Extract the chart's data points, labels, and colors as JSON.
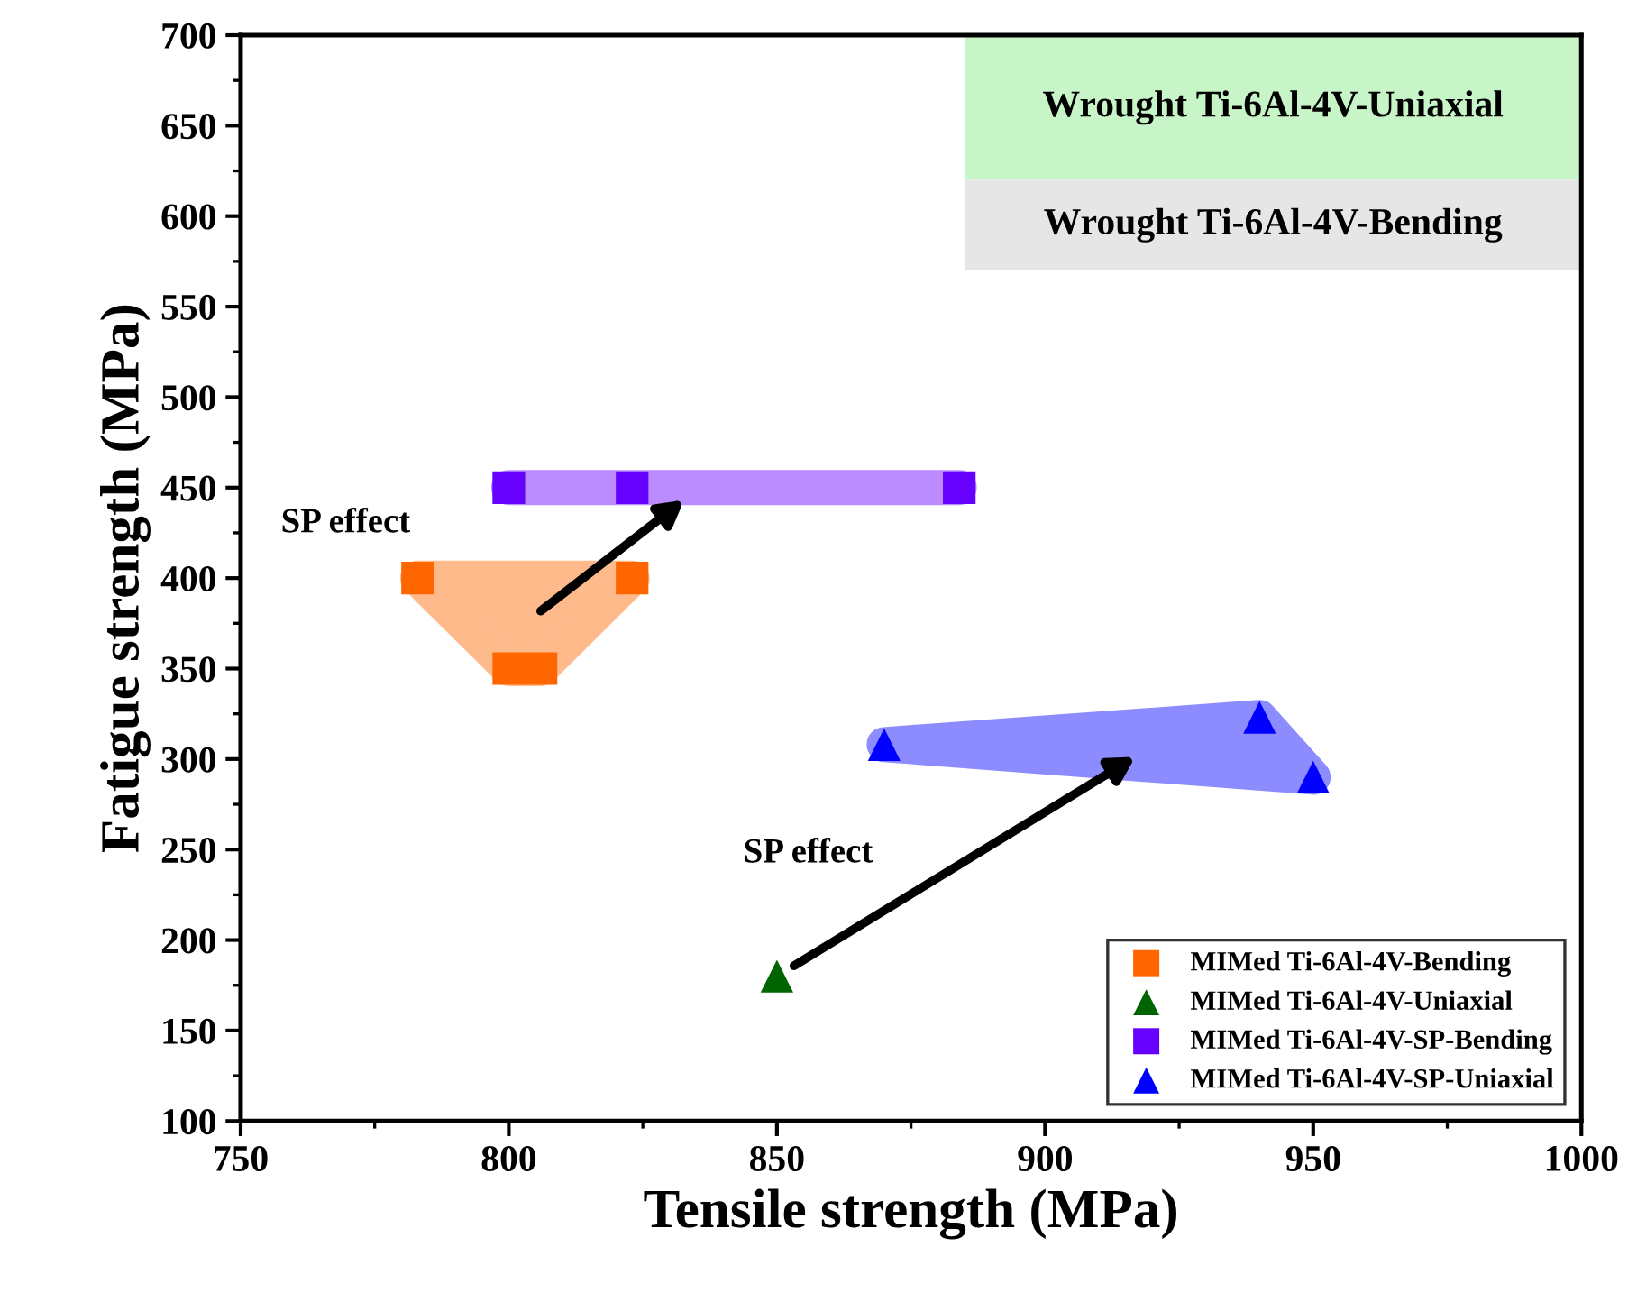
{
  "chart_data": {
    "type": "scatter",
    "xlabel": "Tensile strength (MPa)",
    "ylabel": "Fatigue strength (MPa)",
    "xlim": [
      750,
      1000
    ],
    "xticks": [
      750,
      800,
      850,
      900,
      950,
      1000
    ],
    "ylim": [
      100,
      700
    ],
    "yticks": [
      100,
      150,
      200,
      250,
      300,
      350,
      400,
      450,
      500,
      550,
      600,
      650,
      700
    ],
    "grid": false,
    "legend": "bottom right",
    "series": [
      {
        "name": "MIMed Ti-6Al-4V-Bending",
        "color": "#ff6600",
        "marker": "square",
        "x": [
          783,
          823,
          806,
          800
        ],
        "values": [
          400,
          400,
          350,
          350
        ]
      },
      {
        "name": "MIMed Ti-6Al-4V-Uniaxial",
        "color": "#006400",
        "marker": "triangle",
        "x": [
          850
        ],
        "values": [
          180
        ]
      },
      {
        "name": "MIMed Ti-6Al-4V-SP-Bending",
        "color": "#6600ff",
        "marker": "square",
        "x": [
          800,
          823,
          884
        ],
        "values": [
          450,
          450,
          450
        ]
      },
      {
        "name": "MIMed Ti-6Al-4V-SP-Uniaxial",
        "color": "#0000ff",
        "marker": "triangle",
        "x": [
          870,
          940,
          950
        ],
        "values": [
          308,
          323,
          290
        ]
      }
    ],
    "bands": [
      {
        "axis": "y",
        "from": 620,
        "to": 700,
        "label": "Wrought Ti-6Al-4V-Uniaxial",
        "color": "#c8f5c8"
      },
      {
        "axis": "y",
        "from": 570,
        "to": 620,
        "label": "Wrought Ti-6Al-4V-Bending",
        "color": "#e6e6e6"
      }
    ],
    "annotations": [
      "SP effect",
      "SP effect"
    ]
  }
}
